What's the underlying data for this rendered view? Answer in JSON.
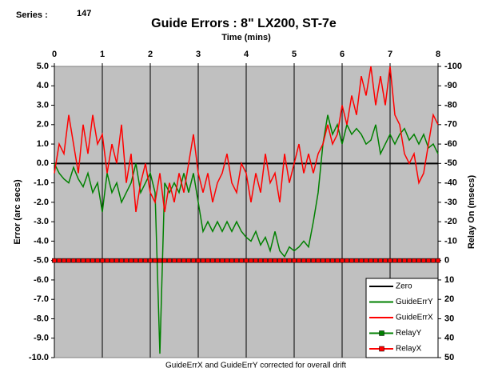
{
  "series_label": "Series :",
  "series_number": "147",
  "chart_data": {
    "type": "line",
    "title": "Guide Errors : 8\" LX200, ST-7e",
    "x_label": "Time (mins)",
    "y_label": "Error (arc secs)",
    "y2_label": "Relay On (msecs)",
    "note": "GuideErrX and GuideErrY corrected for overall drift",
    "x": [
      0,
      0.1,
      0.2,
      0.3,
      0.4,
      0.5,
      0.6,
      0.7,
      0.8,
      0.9,
      1,
      1.1,
      1.2,
      1.3,
      1.4,
      1.5,
      1.6,
      1.7,
      1.8,
      1.9,
      2,
      2.1,
      2.2,
      2.3,
      2.4,
      2.5,
      2.6,
      2.7,
      2.8,
      2.9,
      3,
      3.1,
      3.2,
      3.3,
      3.4,
      3.5,
      3.6,
      3.7,
      3.8,
      3.9,
      4,
      4.1,
      4.2,
      4.3,
      4.4,
      4.5,
      4.6,
      4.7,
      4.8,
      4.9,
      5,
      5.1,
      5.2,
      5.3,
      5.4,
      5.5,
      5.6,
      5.7,
      5.8,
      5.9,
      6,
      6.1,
      6.2,
      6.3,
      6.4,
      6.5,
      6.6,
      6.7,
      6.8,
      6.9,
      7,
      7.1,
      7.2,
      7.3,
      7.4,
      7.5,
      7.6,
      7.7,
      7.8,
      7.9,
      8
    ],
    "series": [
      {
        "name": "Zero",
        "color": "#000000",
        "x": [
          0,
          8
        ],
        "values": [
          0,
          0
        ]
      },
      {
        "name": "GuideErrY",
        "color": "#008000",
        "values": [
          0.0,
          -0.5,
          -0.8,
          -1.0,
          -0.2,
          -0.8,
          -1.2,
          -0.5,
          -1.5,
          -1.0,
          -2.5,
          -0.5,
          -1.5,
          -1.0,
          -2.0,
          -1.5,
          -1.0,
          0.0,
          -1.5,
          -1.0,
          -0.5,
          -1.5,
          -9.8,
          -1.0,
          -1.5,
          -1.0,
          -1.5,
          -0.5,
          -1.5,
          -0.5,
          -2.0,
          -3.5,
          -3.0,
          -3.5,
          -3.0,
          -3.5,
          -3.0,
          -3.5,
          -3.0,
          -3.5,
          -3.8,
          -4.0,
          -3.5,
          -4.2,
          -3.8,
          -4.5,
          -3.5,
          -4.5,
          -4.8,
          -4.3,
          -4.5,
          -4.3,
          -4.0,
          -4.3,
          -3.0,
          -1.5,
          1.0,
          2.5,
          1.5,
          2.0,
          1.0,
          2.0,
          1.5,
          1.8,
          1.5,
          1.0,
          1.2,
          2.0,
          0.5,
          1.0,
          1.5,
          1.0,
          1.5,
          1.8,
          1.2,
          1.5,
          1.0,
          1.5,
          0.8,
          1.0,
          0.5
        ]
      },
      {
        "name": "GuideErrX",
        "color": "#ff0000",
        "values": [
          -0.5,
          1.0,
          0.5,
          2.5,
          1.0,
          -0.5,
          2.0,
          0.5,
          2.5,
          1.0,
          1.5,
          -0.5,
          1.0,
          0.0,
          2.0,
          -1.0,
          0.5,
          -2.5,
          -1.0,
          0.0,
          -1.5,
          -2.0,
          -0.5,
          -2.5,
          -1.0,
          -2.0,
          -0.5,
          -1.5,
          0.0,
          1.5,
          -0.5,
          -1.5,
          -0.5,
          -2.0,
          -1.0,
          -0.5,
          0.5,
          -1.0,
          -1.5,
          0.0,
          -0.5,
          -2.0,
          -0.5,
          -1.5,
          0.5,
          -1.0,
          -0.5,
          -2.0,
          0.5,
          -1.0,
          0.0,
          1.0,
          -0.5,
          0.5,
          -0.5,
          0.5,
          1.0,
          2.0,
          1.0,
          1.5,
          3.0,
          2.0,
          3.5,
          2.5,
          4.5,
          3.5,
          5.0,
          3.0,
          4.5,
          3.0,
          5.0,
          2.5,
          2.0,
          0.5,
          0.0,
          0.5,
          -1.0,
          -0.5,
          1.0,
          2.5,
          2.0
        ]
      },
      {
        "name": "RelayY",
        "color": "#008000",
        "marker": "square",
        "axis": "y2",
        "values": [
          0,
          0,
          0,
          0,
          0,
          0,
          0,
          0,
          0,
          0,
          0,
          0,
          0,
          0,
          0,
          0,
          0,
          0,
          0,
          0,
          0,
          0,
          0,
          0,
          0,
          0,
          0,
          0,
          0,
          0,
          0,
          0,
          0,
          0,
          0,
          0,
          0,
          0,
          0,
          0,
          0,
          0,
          0,
          0,
          0,
          0,
          0,
          0,
          0,
          0,
          0,
          0,
          0,
          0,
          0,
          0,
          0,
          0,
          0,
          0,
          0,
          0,
          0,
          0,
          0,
          0,
          0,
          0,
          0,
          0,
          0,
          0,
          0,
          0,
          0,
          0,
          0,
          0,
          0,
          0,
          0
        ]
      },
      {
        "name": "RelayX",
        "color": "#ff0000",
        "marker": "square",
        "axis": "y2",
        "values": [
          0,
          0,
          0,
          0,
          0,
          0,
          0,
          0,
          0,
          0,
          0,
          0,
          0,
          0,
          0,
          0,
          0,
          0,
          0,
          0,
          0,
          0,
          0,
          0,
          0,
          0,
          0,
          0,
          0,
          0,
          0,
          0,
          0,
          0,
          0,
          0,
          0,
          0,
          0,
          0,
          0,
          0,
          0,
          0,
          0,
          0,
          0,
          0,
          0,
          0,
          0,
          0,
          0,
          0,
          0,
          0,
          0,
          0,
          0,
          0,
          0,
          0,
          0,
          0,
          0,
          0,
          0,
          0,
          0,
          0,
          0,
          0,
          0,
          0,
          0,
          0,
          0,
          0,
          0,
          0,
          0
        ]
      }
    ],
    "xlim": [
      0,
      8
    ],
    "xticks": [
      0,
      1,
      2,
      3,
      4,
      5,
      6,
      7,
      8
    ],
    "ylim": [
      -10,
      5
    ],
    "yticks": [
      {
        "value": 5,
        "label": "5.0"
      },
      {
        "value": 4,
        "label": "4.0"
      },
      {
        "value": 3,
        "label": "3.0"
      },
      {
        "value": 2,
        "label": "2.0"
      },
      {
        "value": 1,
        "label": "1.0"
      },
      {
        "value": 0,
        "label": "0.0"
      },
      {
        "value": -1,
        "label": "-1.0"
      },
      {
        "value": -2,
        "label": "-2.0"
      },
      {
        "value": -3,
        "label": "-3.0"
      },
      {
        "value": -4,
        "label": "-4.0"
      },
      {
        "value": -5,
        "label": "-5.0"
      },
      {
        "value": -6,
        "label": "-6.0"
      },
      {
        "value": -7,
        "label": "-7.0"
      },
      {
        "value": -8,
        "label": "-8.0"
      },
      {
        "value": -9,
        "label": "-9.0"
      },
      {
        "value": -10,
        "label": "-10.0"
      }
    ],
    "y2lim": [
      50,
      -100
    ],
    "y2ticks": [
      -100,
      -90,
      -80,
      -70,
      -60,
      -50,
      -40,
      -30,
      -20,
      -10,
      0,
      10,
      20,
      30,
      40,
      50
    ],
    "grid": "x",
    "background": "#c0c0c0",
    "legend": "lower right"
  }
}
